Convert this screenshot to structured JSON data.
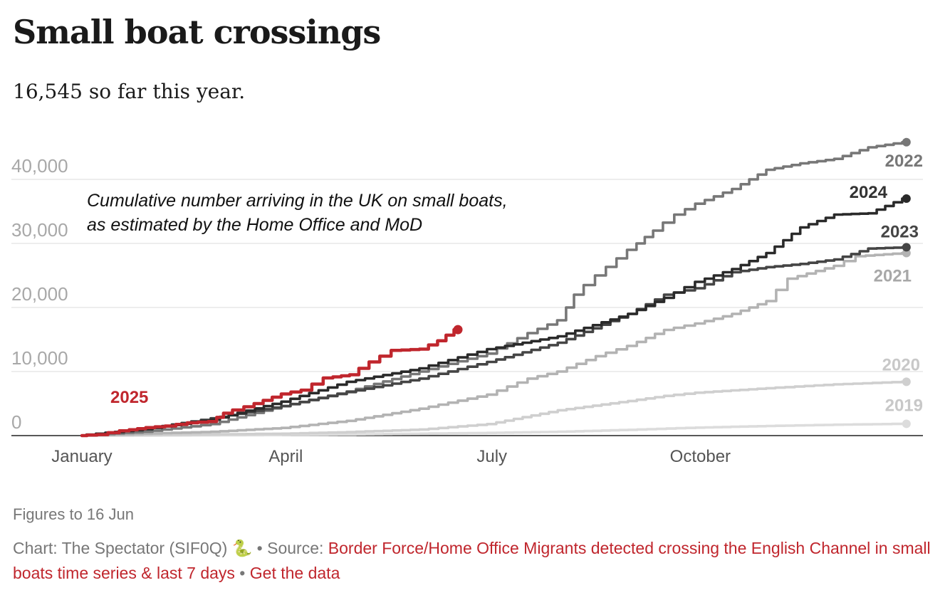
{
  "header": {
    "title": "Small boat crossings",
    "subtitle": "16,545 so far this year."
  },
  "chart_data": {
    "type": "line",
    "title": "Small boat crossings",
    "subtitle": "16,545 so far this year.",
    "annotation": [
      "Cumulative number arriving in the UK on small boats,",
      "as estimated by the Home Office and MoD"
    ],
    "xlabel": "",
    "ylabel": "",
    "x_ticks": [
      {
        "label": "January",
        "day": 1
      },
      {
        "label": "April",
        "day": 91
      },
      {
        "label": "July",
        "day": 182
      },
      {
        "label": "October",
        "day": 274
      }
    ],
    "y_ticks": [
      {
        "label": "0",
        "value": 0
      },
      {
        "label": "10,000",
        "value": 10000
      },
      {
        "label": "20,000",
        "value": 20000
      },
      {
        "label": "30,000",
        "value": 30000
      },
      {
        "label": "40,000",
        "value": 40000
      }
    ],
    "xlim": [
      1,
      366
    ],
    "ylim": [
      0,
      46000
    ],
    "grid": "horizontal",
    "x_unit": "day of year",
    "series": [
      {
        "name": "2019",
        "color": "#dcdcdc",
        "label_color": "#c8c8c8",
        "x": [
          1,
          30,
          60,
          91,
          120,
          152,
          182,
          213,
          244,
          274,
          305,
          335,
          365
        ],
        "y": [
          0,
          20,
          50,
          100,
          180,
          300,
          420,
          600,
          900,
          1250,
          1500,
          1700,
          1840
        ]
      },
      {
        "name": "2020",
        "color": "#cfcfcf",
        "label_color": "#c8c8c8",
        "x": [
          1,
          30,
          60,
          91,
          120,
          152,
          182,
          213,
          244,
          260,
          274,
          305,
          335,
          365
        ],
        "y": [
          0,
          100,
          200,
          300,
          550,
          950,
          1800,
          3950,
          5400,
          6200,
          6700,
          7400,
          8000,
          8400
        ]
      },
      {
        "name": "2021",
        "color": "#b3b3b3",
        "label_color": "#a8a8a8",
        "x": [
          1,
          30,
          60,
          91,
          120,
          152,
          182,
          200,
          213,
          230,
          244,
          260,
          274,
          290,
          305,
          315,
          335,
          345,
          365
        ],
        "y": [
          0,
          300,
          600,
          1200,
          2300,
          4200,
          6400,
          8900,
          10000,
          12400,
          14000,
          16500,
          17500,
          19000,
          21000,
          24500,
          26500,
          28000,
          28500
        ]
      },
      {
        "name": "2022",
        "color": "#777777",
        "label_color": "#777777",
        "x": [
          1,
          30,
          60,
          91,
          120,
          152,
          182,
          200,
          213,
          220,
          230,
          244,
          255,
          265,
          274,
          290,
          305,
          320,
          335,
          350,
          365
        ],
        "y": [
          0,
          600,
          1800,
          4600,
          6900,
          10000,
          12800,
          16000,
          18000,
          22000,
          25000,
          29000,
          32000,
          34500,
          36200,
          38500,
          41500,
          42500,
          43200,
          45000,
          45800
        ]
      },
      {
        "name": "2023",
        "color": "#454545",
        "label_color": "#454545",
        "x": [
          1,
          30,
          60,
          91,
          120,
          152,
          182,
          213,
          244,
          260,
          274,
          290,
          305,
          320,
          335,
          350,
          365
        ],
        "y": [
          0,
          1000,
          2700,
          4600,
          6800,
          8900,
          11500,
          14500,
          19000,
          22000,
          23000,
          25500,
          26300,
          26800,
          27500,
          29200,
          29400
        ]
      },
      {
        "name": "2024",
        "color": "#2a2a2a",
        "label_color": "#333333",
        "x": [
          1,
          30,
          60,
          91,
          120,
          152,
          182,
          213,
          244,
          260,
          274,
          290,
          305,
          320,
          335,
          350,
          365
        ],
        "y": [
          0,
          1000,
          2500,
          5300,
          8400,
          10500,
          13500,
          15500,
          19000,
          21500,
          24000,
          26000,
          28500,
          32500,
          34500,
          34700,
          37000
        ]
      },
      {
        "name": "2025",
        "color": "#c0262d",
        "label_color": "#c0262d",
        "x": [
          1,
          10,
          20,
          31,
          40,
          50,
          59,
          65,
          75,
          91,
          100,
          110,
          121,
          130,
          140,
          152,
          160,
          167
        ],
        "y": [
          0,
          150,
          750,
          1250,
          1500,
          2000,
          2200,
          3500,
          4500,
          6500,
          7100,
          9000,
          9500,
          11500,
          13300,
          13500,
          14800,
          16545
        ]
      }
    ]
  },
  "footer": {
    "notes": "Figures to 16 Jun",
    "credit_prefix": "Chart: The Spectator (SIF0Q) ",
    "credit_emoji": "🐍",
    "credit_source_label": " • Source: ",
    "credit_source_link": "Border Force/Home Office Migrants detected crossing the English Channel in small boats time series & last 7 days",
    "credit_sep": " • ",
    "credit_data_link": "Get the data",
    "link_color": "#c0262d"
  }
}
